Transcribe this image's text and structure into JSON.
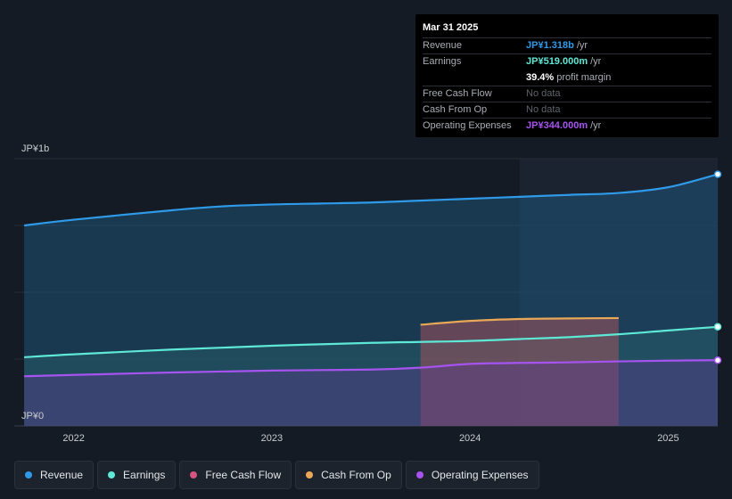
{
  "tooltip": {
    "date": "Mar 31 2025",
    "rows": [
      {
        "label": "Revenue",
        "value": "JP¥1.318b",
        "unit": "/yr",
        "color": "#2f9be8"
      },
      {
        "label": "Earnings",
        "value": "JP¥519.000m",
        "unit": "/yr",
        "color": "#5ee8d6"
      },
      {
        "label": "",
        "value": "39.4%",
        "unit": "profit margin",
        "color": "#ffffff"
      },
      {
        "label": "Free Cash Flow",
        "value": "No data",
        "unit": "",
        "color": "#5f646b"
      },
      {
        "label": "Cash From Op",
        "value": "No data",
        "unit": "",
        "color": "#5f646b"
      },
      {
        "label": "Operating Expenses",
        "value": "JP¥344.000m",
        "unit": "/yr",
        "color": "#a653f0"
      }
    ]
  },
  "chart_data": {
    "type": "area",
    "y_top_label": "JP¥1b",
    "y_bottom_label": "JP¥0",
    "ylim": [
      0,
      1.4
    ],
    "xlim": [
      2021.7,
      2025.25
    ],
    "x_ticks": [
      2022,
      2023,
      2024,
      2025
    ],
    "x_tick_labels": [
      "2022",
      "2023",
      "2024",
      "2025"
    ],
    "series": [
      {
        "name": "Revenue",
        "color": "#2f9be8",
        "x": [
          2021.75,
          2022.0,
          2022.5,
          2022.75,
          2023.0,
          2023.25,
          2023.5,
          2023.75,
          2024.0,
          2024.25,
          2024.5,
          2024.75,
          2025.0,
          2025.25
        ],
        "y": [
          1.05,
          1.08,
          1.13,
          1.15,
          1.16,
          1.165,
          1.17,
          1.18,
          1.19,
          1.2,
          1.21,
          1.22,
          1.25,
          1.318
        ]
      },
      {
        "name": "Earnings",
        "color": "#5ee8d6",
        "x": [
          2021.75,
          2022.0,
          2022.5,
          2023.0,
          2023.5,
          2023.75,
          2024.0,
          2024.25,
          2024.5,
          2024.75,
          2025.0,
          2025.25
        ],
        "y": [
          0.36,
          0.375,
          0.4,
          0.42,
          0.435,
          0.44,
          0.445,
          0.455,
          0.465,
          0.48,
          0.5,
          0.519
        ]
      },
      {
        "name": "Cash From Op",
        "color": "#e8a857",
        "x": [
          2023.75,
          2024.0,
          2024.25,
          2024.5,
          2024.75
        ],
        "y": [
          0.53,
          0.55,
          0.56,
          0.563,
          0.565
        ]
      },
      {
        "name": "Operating Expenses",
        "color": "#a653f0",
        "x": [
          2021.75,
          2022.0,
          2022.5,
          2023.0,
          2023.5,
          2023.75,
          2024.0,
          2024.25,
          2024.5,
          2024.75,
          2025.0,
          2025.25
        ],
        "y": [
          0.26,
          0.267,
          0.28,
          0.29,
          0.295,
          0.305,
          0.325,
          0.33,
          0.333,
          0.338,
          0.342,
          0.344
        ]
      }
    ],
    "highlight_from_x": 2024.25
  },
  "legend": [
    {
      "label": "Revenue",
      "color": "#2f9be8"
    },
    {
      "label": "Earnings",
      "color": "#5ee8d6"
    },
    {
      "label": "Free Cash Flow",
      "color": "#d4557f"
    },
    {
      "label": "Cash From Op",
      "color": "#e8a857"
    },
    {
      "label": "Operating Expenses",
      "color": "#a653f0"
    }
  ]
}
